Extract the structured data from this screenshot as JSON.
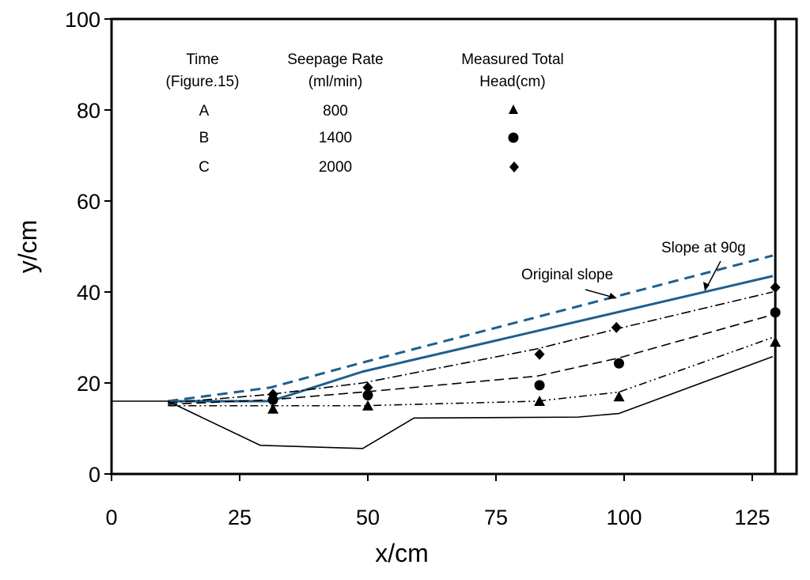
{
  "chart_data": {
    "type": "line",
    "xlabel": "x/cm",
    "ylabel": "y/cm",
    "xlim": [
      0,
      130
    ],
    "ylim": [
      0,
      100
    ],
    "x_ticks": [
      0,
      25,
      50,
      75,
      100,
      125
    ],
    "y_ticks": [
      0,
      20,
      40,
      60,
      80,
      100
    ],
    "grid": false,
    "vertical_line_x": 129.5,
    "legend_table": {
      "headers": [
        [
          "Time",
          "(Figure.15)"
        ],
        [
          "Seepage Rate",
          "(ml/min)"
        ],
        [
          "Measured Total",
          "Head(cm)"
        ]
      ],
      "rows": [
        {
          "time": "A",
          "rate": "800",
          "marker": "triangle"
        },
        {
          "time": "B",
          "rate": "1400",
          "marker": "circle"
        },
        {
          "time": "C",
          "rate": "2000",
          "marker": "diamond"
        }
      ]
    },
    "annotations": [
      {
        "text": "Slope at 90g",
        "target": "slope_90g"
      },
      {
        "text": "Original slope",
        "target": "original_slope"
      }
    ],
    "series": [
      {
        "key": "slope_90g",
        "style": "solid",
        "color": "#1f5f8b",
        "points": [
          [
            11,
            16
          ],
          [
            31,
            16
          ],
          [
            49,
            22.5
          ],
          [
            129,
            43.5
          ]
        ]
      },
      {
        "key": "original_slope",
        "style": "dashed",
        "color": "#1f5f8b",
        "points": [
          [
            11,
            16
          ],
          [
            31,
            19
          ],
          [
            49,
            24.5
          ],
          [
            129,
            48
          ]
        ]
      },
      {
        "key": "ground",
        "style": "solid",
        "color": "#000000",
        "points": [
          [
            0,
            16
          ],
          [
            11,
            16
          ],
          [
            29,
            6.3
          ],
          [
            49,
            5.6
          ],
          [
            59,
            12.3
          ],
          [
            91,
            12.5
          ],
          [
            99,
            13.3
          ],
          [
            129,
            25.8
          ]
        ]
      },
      {
        "key": "curve_A",
        "style": "dashdotdot",
        "color": "#000000",
        "points": [
          [
            11,
            15
          ],
          [
            31,
            15
          ],
          [
            49,
            15
          ],
          [
            83,
            16
          ],
          [
            99,
            18
          ],
          [
            129,
            30
          ]
        ]
      },
      {
        "key": "curve_B",
        "style": "longdash",
        "color": "#000000",
        "points": [
          [
            11,
            15.3
          ],
          [
            31,
            16.3
          ],
          [
            49,
            18
          ],
          [
            83,
            21.5
          ],
          [
            99,
            25.5
          ],
          [
            129,
            35
          ]
        ]
      },
      {
        "key": "curve_C",
        "style": "dashdot",
        "color": "#000000",
        "points": [
          [
            11,
            15.6
          ],
          [
            31,
            17.5
          ],
          [
            49,
            20
          ],
          [
            83,
            27.5
          ],
          [
            99,
            32
          ],
          [
            129,
            40
          ]
        ]
      }
    ],
    "markers": [
      {
        "shape": "triangle",
        "points": [
          [
            31.5,
            14.3
          ],
          [
            50,
            15
          ],
          [
            83.5,
            16
          ],
          [
            99,
            17
          ],
          [
            129.5,
            29
          ]
        ]
      },
      {
        "shape": "circle",
        "points": [
          [
            31.5,
            16.3
          ],
          [
            50,
            17.3
          ],
          [
            83.5,
            19.5
          ],
          [
            99,
            24.3
          ],
          [
            129.5,
            35.5
          ]
        ]
      },
      {
        "shape": "diamond",
        "points": [
          [
            31.5,
            17.5
          ],
          [
            50,
            19
          ],
          [
            83.5,
            26.3
          ],
          [
            98.5,
            32.2
          ],
          [
            129.5,
            41
          ]
        ]
      }
    ]
  }
}
